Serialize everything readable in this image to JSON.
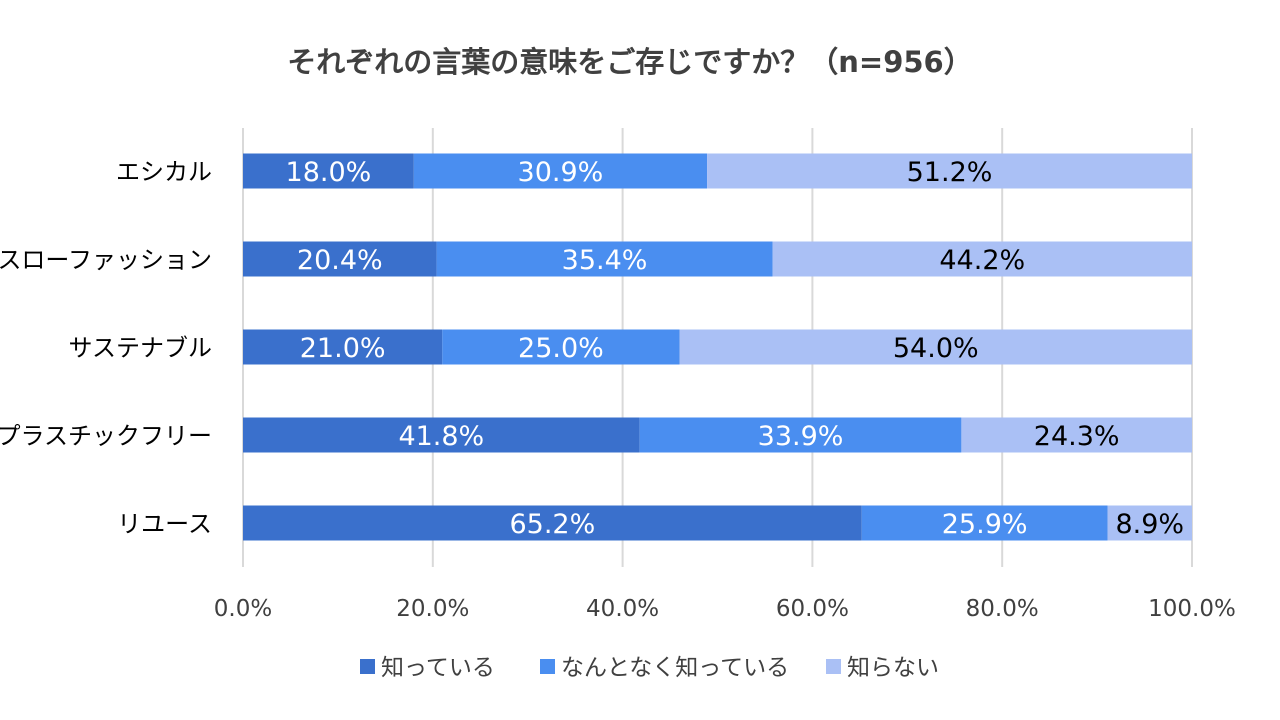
{
  "chart_data": {
    "type": "bar",
    "orientation": "horizontal",
    "stacked": true,
    "title": "それぞれの言葉の意味をご存じですか？（n=956）",
    "categories": [
      "エシカル",
      "スローファッション",
      "サステナブル",
      "プラスチックフリー",
      "リユース"
    ],
    "series": [
      {
        "name": "知っている",
        "color": "#3a70cc",
        "label_color": "#ffffff",
        "values": [
          18.0,
          20.4,
          21.0,
          41.8,
          65.2
        ]
      },
      {
        "name": "なんとなく知っている",
        "color": "#4a8ef0",
        "label_color": "#ffffff",
        "values": [
          30.9,
          35.4,
          25.0,
          33.9,
          25.9
        ]
      },
      {
        "name": "知らない",
        "color": "#aac0f5",
        "label_color": "#000000",
        "values": [
          51.2,
          44.2,
          54.0,
          24.3,
          8.9
        ]
      }
    ],
    "xlim": [
      0,
      100
    ],
    "xticks": [
      0,
      20,
      40,
      60,
      80,
      100
    ],
    "xtick_labels": [
      "0.0%",
      "20.0%",
      "40.0%",
      "60.0%",
      "80.0%",
      "100.0%"
    ],
    "value_suffix": "%",
    "grid": true,
    "legend_position": "bottom"
  }
}
